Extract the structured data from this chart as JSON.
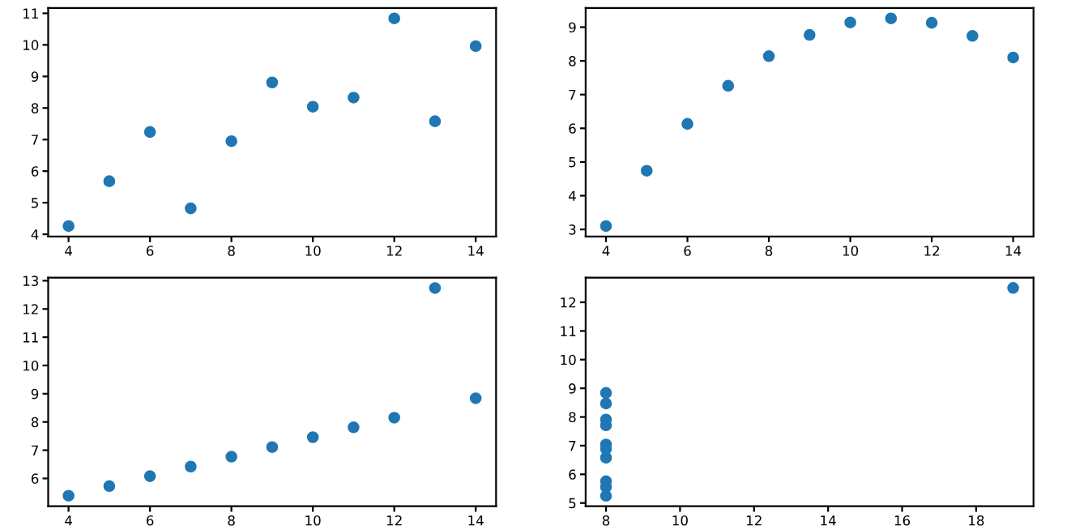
{
  "chart_data": [
    {
      "type": "scatter",
      "x": [
        10,
        8,
        13,
        9,
        11,
        14,
        6,
        4,
        12,
        7,
        5
      ],
      "values": [
        8.04,
        6.95,
        7.58,
        8.81,
        8.33,
        9.96,
        7.24,
        4.26,
        10.84,
        4.82,
        5.68
      ],
      "color": "#1f77b4",
      "marker": "circle",
      "xlim": [
        3.5,
        14.5
      ],
      "xticks": [
        4,
        6,
        8,
        10,
        12,
        14
      ],
      "ylim": [
        3.93,
        11.17
      ],
      "yticks": [
        4,
        5,
        6,
        7,
        8,
        9,
        10,
        11
      ],
      "grid": false
    },
    {
      "type": "scatter",
      "x": [
        10,
        8,
        13,
        9,
        11,
        14,
        6,
        4,
        12,
        7,
        5
      ],
      "values": [
        9.14,
        8.14,
        8.74,
        8.77,
        9.26,
        8.1,
        6.13,
        3.1,
        9.13,
        7.26,
        4.74
      ],
      "color": "#1f77b4",
      "marker": "circle",
      "xlim": [
        3.5,
        14.5
      ],
      "xticks": [
        4,
        6,
        8,
        10,
        12,
        14
      ],
      "ylim": [
        2.79,
        9.57
      ],
      "yticks": [
        3,
        4,
        5,
        6,
        7,
        8,
        9
      ],
      "grid": false
    },
    {
      "type": "scatter",
      "x": [
        10,
        8,
        13,
        9,
        11,
        14,
        6,
        4,
        12,
        7,
        5
      ],
      "values": [
        7.46,
        6.77,
        12.74,
        7.11,
        7.81,
        8.84,
        6.08,
        5.39,
        8.15,
        6.42,
        5.73
      ],
      "color": "#1f77b4",
      "marker": "circle",
      "xlim": [
        3.5,
        14.5
      ],
      "xticks": [
        4,
        6,
        8,
        10,
        12,
        14
      ],
      "ylim": [
        5.02,
        13.11
      ],
      "yticks": [
        6,
        7,
        8,
        9,
        10,
        11,
        12,
        13
      ],
      "grid": false
    },
    {
      "type": "scatter",
      "x": [
        8,
        8,
        8,
        8,
        8,
        8,
        8,
        19,
        8,
        8,
        8
      ],
      "values": [
        6.58,
        5.76,
        7.71,
        8.84,
        8.47,
        7.04,
        5.25,
        12.5,
        5.56,
        7.91,
        6.89
      ],
      "color": "#1f77b4",
      "marker": "circle",
      "xlim": [
        7.45,
        19.55
      ],
      "xticks": [
        8,
        10,
        12,
        14,
        16,
        18
      ],
      "ylim": [
        4.89,
        12.86
      ],
      "yticks": [
        5,
        6,
        7,
        8,
        9,
        10,
        11,
        12
      ],
      "grid": false
    }
  ]
}
